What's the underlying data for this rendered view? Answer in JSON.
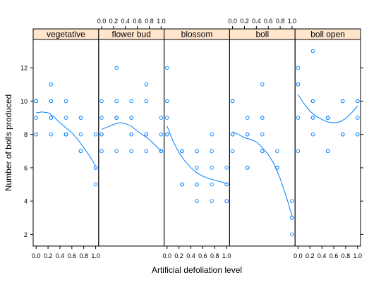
{
  "chart_data": {
    "type": "scatter",
    "title": "",
    "xlabel": "Artificial defoliation level",
    "ylabel": "Number of bolls produced",
    "xlim": [
      -0.05,
      1.05
    ],
    "ylim": [
      1.3,
      13.7
    ],
    "x_ticks": [
      "0.0",
      "0.2",
      "0.4",
      "0.6",
      "0.8",
      "1.0"
    ],
    "y_ticks": [
      "2",
      "4",
      "6",
      "8",
      "10",
      "12"
    ],
    "point_color": "#0080ff",
    "smooth_color": "#0080ff",
    "strip_color": "#ffe5cc",
    "panels": [
      {
        "name": "vegetative",
        "x": [
          0.0,
          0.0,
          0.0,
          0.0,
          0.0,
          0.25,
          0.25,
          0.25,
          0.25,
          0.25,
          0.25,
          0.5,
          0.5,
          0.5,
          0.5,
          0.5,
          0.5,
          0.75,
          0.75,
          0.75,
          0.75,
          0.75,
          1.0,
          1.0,
          1.0,
          1.0,
          1.0
        ],
        "y": [
          10,
          10,
          9,
          8,
          8,
          11,
          10,
          10,
          9,
          9,
          8,
          10,
          9,
          8,
          8,
          8,
          8,
          9,
          9,
          8,
          7,
          7,
          8,
          6,
          6,
          6,
          5
        ],
        "smooth": [
          [
            0,
            9.3
          ],
          [
            0.1,
            9.35
          ],
          [
            0.2,
            9.3
          ],
          [
            0.3,
            9.05
          ],
          [
            0.4,
            8.7
          ],
          [
            0.5,
            8.4
          ],
          [
            0.6,
            8.1
          ],
          [
            0.7,
            7.7
          ],
          [
            0.8,
            7.2
          ],
          [
            0.9,
            6.7
          ],
          [
            1.0,
            6.1
          ]
        ]
      },
      {
        "name": "flower bud",
        "x": [
          0.0,
          0.0,
          0.0,
          0.0,
          0.0,
          0.25,
          0.25,
          0.25,
          0.25,
          0.25,
          0.25,
          0.5,
          0.5,
          0.5,
          0.5,
          0.5,
          0.5,
          0.75,
          0.75,
          0.75,
          0.75,
          0.75,
          1.0,
          1.0,
          1.0,
          1.0,
          1.0
        ],
        "y": [
          10,
          9,
          8,
          8,
          7,
          12,
          10,
          9,
          9,
          9,
          7,
          10,
          9,
          9,
          8,
          8,
          7,
          11,
          10,
          8,
          8,
          7,
          9,
          8,
          7,
          7,
          7
        ],
        "smooth": [
          [
            0,
            8.3
          ],
          [
            0.1,
            8.45
          ],
          [
            0.2,
            8.6
          ],
          [
            0.3,
            8.7
          ],
          [
            0.4,
            8.65
          ],
          [
            0.5,
            8.5
          ],
          [
            0.6,
            8.2
          ],
          [
            0.7,
            7.95
          ],
          [
            0.8,
            7.7
          ],
          [
            0.9,
            7.35
          ],
          [
            1.0,
            7.0
          ]
        ]
      },
      {
        "name": "blossom",
        "x": [
          0.0,
          0.0,
          0.0,
          0.0,
          0.0,
          0.25,
          0.25,
          0.25,
          0.25,
          0.25,
          0.25,
          0.5,
          0.5,
          0.5,
          0.5,
          0.5,
          0.5,
          0.75,
          0.75,
          0.75,
          0.75,
          0.75,
          1.0,
          1.0,
          1.0,
          1.0,
          1.0
        ],
        "y": [
          12,
          10,
          9,
          8,
          8,
          7,
          7,
          7,
          5,
          5,
          5,
          7,
          7,
          6,
          5,
          5,
          4,
          8,
          7,
          6,
          5,
          4,
          6,
          5,
          5,
          4,
          4
        ],
        "smooth": [
          [
            0,
            8.5
          ],
          [
            0.1,
            7.6
          ],
          [
            0.2,
            6.9
          ],
          [
            0.3,
            6.4
          ],
          [
            0.4,
            6.0
          ],
          [
            0.5,
            5.7
          ],
          [
            0.6,
            5.5
          ],
          [
            0.7,
            5.35
          ],
          [
            0.8,
            5.25
          ],
          [
            0.9,
            5.15
          ],
          [
            1.0,
            5.05
          ]
        ]
      },
      {
        "name": "boll",
        "x": [
          0.0,
          0.0,
          0.0,
          0.0,
          0.0,
          0.25,
          0.25,
          0.25,
          0.25,
          0.25,
          0.25,
          0.5,
          0.5,
          0.5,
          0.5,
          0.5,
          0.5,
          0.75,
          0.75,
          0.75,
          0.75,
          0.75,
          1.0,
          1.0,
          1.0,
          1.0,
          1.0
        ],
        "y": [
          10,
          10,
          8,
          8,
          7,
          9,
          8,
          8,
          6,
          6,
          6,
          11,
          9,
          9,
          8,
          7,
          7,
          7,
          6,
          6,
          6,
          6,
          4,
          3,
          3,
          3,
          2
        ],
        "smooth": [
          [
            0,
            8.15
          ],
          [
            0.1,
            8.0
          ],
          [
            0.2,
            7.8
          ],
          [
            0.3,
            7.7
          ],
          [
            0.4,
            7.55
          ],
          [
            0.5,
            7.2
          ],
          [
            0.6,
            6.8
          ],
          [
            0.7,
            6.2
          ],
          [
            0.8,
            5.35
          ],
          [
            0.9,
            4.3
          ],
          [
            1.0,
            3.1
          ]
        ]
      },
      {
        "name": "boll open",
        "x": [
          0.0,
          0.0,
          0.0,
          0.0,
          0.0,
          0.25,
          0.25,
          0.25,
          0.25,
          0.25,
          0.25,
          0.5,
          0.5,
          0.5,
          0.5,
          0.5,
          0.5,
          0.75,
          0.75,
          0.75,
          0.75,
          0.75,
          1.0,
          1.0,
          1.0,
          1.0,
          1.0
        ],
        "y": [
          12,
          11,
          11,
          9,
          7,
          13,
          10,
          10,
          9,
          9,
          8,
          9,
          9,
          9,
          9,
          7,
          7,
          10,
          10,
          8,
          8,
          8,
          10,
          10,
          9,
          8,
          8
        ],
        "smooth": [
          [
            0,
            10.4
          ],
          [
            0.1,
            9.85
          ],
          [
            0.2,
            9.4
          ],
          [
            0.3,
            9.1
          ],
          [
            0.4,
            8.9
          ],
          [
            0.5,
            8.75
          ],
          [
            0.6,
            8.7
          ],
          [
            0.7,
            8.75
          ],
          [
            0.8,
            8.95
          ],
          [
            0.9,
            9.3
          ],
          [
            1.0,
            9.7
          ]
        ]
      }
    ]
  }
}
